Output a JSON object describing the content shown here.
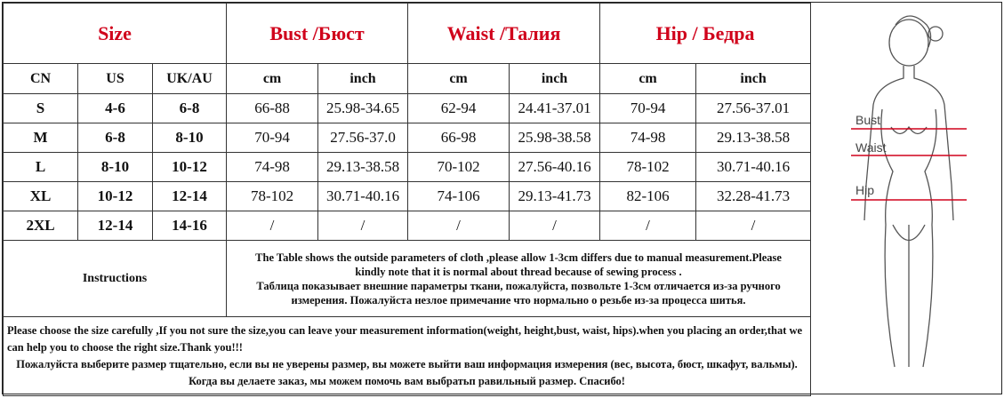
{
  "header": {
    "size": "Size",
    "bust": "Bust /Бюст",
    "waist": "Waist /Талия",
    "hip": "Hip / Бедра"
  },
  "subheader": [
    "CN",
    "US",
    "UK/AU",
    "cm",
    "inch",
    "cm",
    "inch",
    "cm",
    "inch"
  ],
  "rows": [
    [
      "S",
      "4-6",
      "6-8",
      "66-88",
      "25.98-34.65",
      "62-94",
      "24.41-37.01",
      "70-94",
      "27.56-37.01"
    ],
    [
      "M",
      "6-8",
      "8-10",
      "70-94",
      "27.56-37.0",
      "66-98",
      "25.98-38.58",
      "74-98",
      "29.13-38.58"
    ],
    [
      "L",
      "8-10",
      "10-12",
      "74-98",
      "29.13-38.58",
      "70-102",
      "27.56-40.16",
      "78-102",
      "30.71-40.16"
    ],
    [
      "XL",
      "10-12",
      "12-14",
      "78-102",
      "30.71-40.16",
      "74-106",
      "29.13-41.73",
      "82-106",
      "32.28-41.73"
    ],
    [
      "2XL",
      "12-14",
      "14-16",
      "/",
      "/",
      "/",
      "/",
      "/",
      "/"
    ]
  ],
  "instructions": {
    "label": "Instructions",
    "en": "The Table shows the outside parameters of cloth ,please allow 1-3cm differs due to manual measurement.Please kindly note that it is normal about thread because of sewing process .",
    "ru": "Таблица показывает внешние параметры ткани, пожалуйста,  позвольте 1-3см  отличается из-за ручного  измерения.  Пожалуйста незлое примечание что нормально о резьбе из-за процесса шитья."
  },
  "note": {
    "en": "Please choose the size carefully ,If you not sure the size,you can leave your measurement information(weight, height,bust, waist, hips).when you placing an order,that we can help you to choose the right size.Thank you!!!",
    "ru": "Пожалуйста выберите размер тщательно, если вы не уверены размер, вы можете выйти ваш информация измерения (вес, высота,  бюст, шкафут, вальмы).  Когда вы делаете заказ, мы можем помочь вам выбратьп равильный размер. Спасибо!"
  },
  "figure": {
    "bust": "Bust",
    "waist": "Waist",
    "hip": "Hip",
    "line_color": "#d0021b"
  },
  "colors": {
    "header_text": "#d0021b"
  }
}
